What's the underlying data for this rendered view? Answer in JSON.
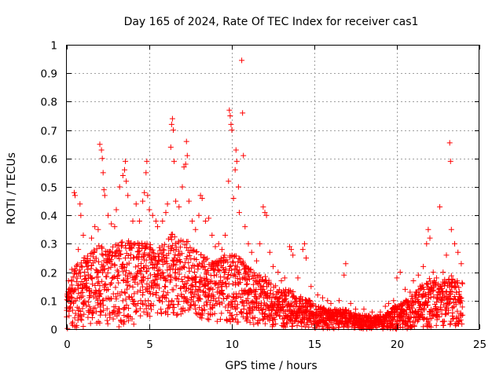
{
  "chart_data": {
    "type": "scatter",
    "title": "Day 165 of 2024, Rate Of TEC Index for receiver cas1",
    "xlabel": "GPS time / hours",
    "ylabel": "ROTI / TECUs",
    "xlim": [
      0,
      25
    ],
    "ylim": [
      0,
      1
    ],
    "x_ticks": [
      0,
      5,
      10,
      15,
      20,
      25
    ],
    "x_tick_labels": [
      "0",
      "5",
      "10",
      "15",
      "20",
      "25"
    ],
    "y_ticks": [
      0,
      0.1,
      0.2,
      0.3,
      0.4,
      0.5,
      0.6,
      0.7,
      0.8,
      0.9,
      1
    ],
    "y_tick_labels": [
      "0",
      "0.1",
      "0.2",
      "0.3",
      "0.4",
      "0.5",
      "0.6",
      "0.7",
      "0.8",
      "0.9",
      "1"
    ],
    "grid": true,
    "marker": "+",
    "series": [
      {
        "name": "ROTI",
        "color": "#ff0000",
        "points": [
          [
            0.1,
            0.17
          ],
          [
            0.3,
            0.21
          ],
          [
            0.45,
            0.48
          ],
          [
            0.5,
            0.47
          ],
          [
            0.7,
            0.28
          ],
          [
            0.8,
            0.44
          ],
          [
            0.85,
            0.4
          ],
          [
            1.0,
            0.33
          ],
          [
            1.2,
            0.22
          ],
          [
            1.5,
            0.32
          ],
          [
            1.7,
            0.36
          ],
          [
            1.9,
            0.35
          ],
          [
            2.0,
            0.65
          ],
          [
            2.1,
            0.63
          ],
          [
            2.15,
            0.6
          ],
          [
            2.2,
            0.55
          ],
          [
            2.25,
            0.49
          ],
          [
            2.3,
            0.47
          ],
          [
            2.5,
            0.4
          ],
          [
            2.7,
            0.37
          ],
          [
            2.9,
            0.36
          ],
          [
            3.0,
            0.42
          ],
          [
            3.2,
            0.5
          ],
          [
            3.4,
            0.54
          ],
          [
            3.5,
            0.56
          ],
          [
            3.55,
            0.59
          ],
          [
            3.6,
            0.52
          ],
          [
            3.7,
            0.47
          ],
          [
            4.0,
            0.38
          ],
          [
            4.2,
            0.44
          ],
          [
            4.4,
            0.38
          ],
          [
            4.6,
            0.45
          ],
          [
            4.7,
            0.48
          ],
          [
            4.8,
            0.55
          ],
          [
            4.85,
            0.59
          ],
          [
            4.9,
            0.47
          ],
          [
            5.0,
            0.42
          ],
          [
            5.2,
            0.4
          ],
          [
            5.4,
            0.38
          ],
          [
            5.5,
            0.36
          ],
          [
            5.8,
            0.38
          ],
          [
            6.0,
            0.41
          ],
          [
            6.1,
            0.44
          ],
          [
            6.3,
            0.64
          ],
          [
            6.35,
            0.72
          ],
          [
            6.4,
            0.74
          ],
          [
            6.45,
            0.7
          ],
          [
            6.5,
            0.59
          ],
          [
            6.6,
            0.45
          ],
          [
            6.8,
            0.43
          ],
          [
            7.0,
            0.5
          ],
          [
            7.1,
            0.57
          ],
          [
            7.2,
            0.58
          ],
          [
            7.25,
            0.66
          ],
          [
            7.3,
            0.61
          ],
          [
            7.4,
            0.45
          ],
          [
            7.6,
            0.38
          ],
          [
            7.8,
            0.35
          ],
          [
            8.0,
            0.4
          ],
          [
            8.1,
            0.47
          ],
          [
            8.2,
            0.46
          ],
          [
            8.4,
            0.38
          ],
          [
            8.6,
            0.39
          ],
          [
            8.8,
            0.33
          ],
          [
            9.0,
            0.29
          ],
          [
            9.2,
            0.3
          ],
          [
            9.4,
            0.28
          ],
          [
            9.6,
            0.33
          ],
          [
            9.8,
            0.52
          ],
          [
            9.85,
            0.77
          ],
          [
            9.9,
            0.75
          ],
          [
            9.95,
            0.72
          ],
          [
            10.0,
            0.7
          ],
          [
            10.1,
            0.46
          ],
          [
            10.2,
            0.56
          ],
          [
            10.25,
            0.63
          ],
          [
            10.3,
            0.59
          ],
          [
            10.4,
            0.5
          ],
          [
            10.45,
            0.41
          ],
          [
            10.6,
            0.945
          ],
          [
            10.65,
            0.76
          ],
          [
            10.7,
            0.61
          ],
          [
            10.8,
            0.36
          ],
          [
            11.0,
            0.3
          ],
          [
            11.2,
            0.27
          ],
          [
            11.5,
            0.24
          ],
          [
            11.7,
            0.3
          ],
          [
            11.9,
            0.43
          ],
          [
            12.0,
            0.41
          ],
          [
            12.1,
            0.4
          ],
          [
            12.3,
            0.27
          ],
          [
            12.5,
            0.22
          ],
          [
            12.8,
            0.2
          ],
          [
            13.0,
            0.17
          ],
          [
            13.2,
            0.18
          ],
          [
            13.5,
            0.29
          ],
          [
            13.6,
            0.28
          ],
          [
            13.7,
            0.26
          ],
          [
            14.0,
            0.18
          ],
          [
            14.3,
            0.28
          ],
          [
            14.4,
            0.3
          ],
          [
            14.5,
            0.25
          ],
          [
            14.8,
            0.15
          ],
          [
            15.2,
            0.12
          ],
          [
            15.5,
            0.11
          ],
          [
            15.8,
            0.1
          ],
          [
            16.0,
            0.09
          ],
          [
            16.5,
            0.1
          ],
          [
            16.8,
            0.19
          ],
          [
            16.9,
            0.23
          ],
          [
            17.2,
            0.09
          ],
          [
            17.5,
            0.07
          ],
          [
            18.0,
            0.07
          ],
          [
            18.5,
            0.06
          ],
          [
            19.0,
            0.06
          ],
          [
            19.3,
            0.08
          ],
          [
            19.5,
            0.09
          ],
          [
            19.8,
            0.1
          ],
          [
            20.0,
            0.18
          ],
          [
            20.2,
            0.2
          ],
          [
            20.5,
            0.14
          ],
          [
            20.8,
            0.13
          ],
          [
            21.0,
            0.17
          ],
          [
            21.3,
            0.19
          ],
          [
            21.6,
            0.22
          ],
          [
            21.8,
            0.3
          ],
          [
            21.9,
            0.35
          ],
          [
            22.0,
            0.32
          ],
          [
            22.2,
            0.2
          ],
          [
            22.4,
            0.18
          ],
          [
            22.6,
            0.43
          ],
          [
            22.8,
            0.2
          ],
          [
            23.0,
            0.26
          ],
          [
            23.2,
            0.655
          ],
          [
            23.25,
            0.59
          ],
          [
            23.3,
            0.35
          ],
          [
            23.5,
            0.3
          ],
          [
            23.7,
            0.27
          ],
          [
            23.9,
            0.23
          ]
        ],
        "dense_band": {
          "description": "dense cloud of points below the envelope",
          "x_step_hours": 0.03,
          "upper_envelope": [
            [
              0,
              0.12
            ],
            [
              0.5,
              0.22
            ],
            [
              1,
              0.25
            ],
            [
              1.5,
              0.27
            ],
            [
              2,
              0.3
            ],
            [
              2.5,
              0.28
            ],
            [
              3,
              0.3
            ],
            [
              3.5,
              0.32
            ],
            [
              4,
              0.3
            ],
            [
              4.5,
              0.31
            ],
            [
              5,
              0.3
            ],
            [
              5.5,
              0.28
            ],
            [
              6,
              0.32
            ],
            [
              6.5,
              0.34
            ],
            [
              7,
              0.33
            ],
            [
              7.5,
              0.3
            ],
            [
              8,
              0.27
            ],
            [
              8.5,
              0.25
            ],
            [
              9,
              0.24
            ],
            [
              9.5,
              0.26
            ],
            [
              10,
              0.27
            ],
            [
              10.5,
              0.26
            ],
            [
              11,
              0.22
            ],
            [
              11.5,
              0.2
            ],
            [
              12,
              0.19
            ],
            [
              12.5,
              0.16
            ],
            [
              13,
              0.14
            ],
            [
              13.5,
              0.14
            ],
            [
              14,
              0.12
            ],
            [
              14.5,
              0.11
            ],
            [
              15,
              0.09
            ],
            [
              15.5,
              0.08
            ],
            [
              16,
              0.07
            ],
            [
              16.5,
              0.07
            ],
            [
              17,
              0.07
            ],
            [
              17.5,
              0.05
            ],
            [
              18,
              0.05
            ],
            [
              18.5,
              0.045
            ],
            [
              19,
              0.045
            ],
            [
              19.5,
              0.06
            ],
            [
              20,
              0.09
            ],
            [
              20.5,
              0.1
            ],
            [
              21,
              0.12
            ],
            [
              21.5,
              0.16
            ],
            [
              22,
              0.18
            ],
            [
              22.5,
              0.16
            ],
            [
              23,
              0.18
            ],
            [
              23.5,
              0.2
            ],
            [
              24,
              0.16
            ]
          ],
          "lower_envelope": [
            [
              0,
              0.0
            ],
            [
              4,
              0.01
            ],
            [
              5,
              0.03
            ],
            [
              6,
              0.04
            ],
            [
              7,
              0.05
            ],
            [
              8,
              0.03
            ],
            [
              10,
              0.02
            ],
            [
              12,
              0.01
            ],
            [
              15,
              0.0
            ],
            [
              20,
              0.0
            ],
            [
              24,
              0.01
            ]
          ]
        }
      }
    ]
  }
}
